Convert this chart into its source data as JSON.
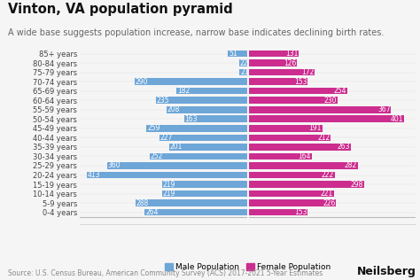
{
  "title": "Vinton, VA population pyramid",
  "subtitle": "A wide base suggests population increase, narrow base indicates declining birth rates.",
  "source": "Source: U.S. Census Bureau, American Community Survey (ACS) 2017-2021 5-Year Estimates",
  "age_groups": [
    "0-4 years",
    "5-9 years",
    "10-14 years",
    "15-19 years",
    "20-24 years",
    "25-29 years",
    "30-34 years",
    "35-39 years",
    "40-44 years",
    "45-49 years",
    "50-54 years",
    "55-59 years",
    "60-64 years",
    "65-69 years",
    "70-74 years",
    "75-79 years",
    "80-84 years",
    "85+ years"
  ],
  "male": [
    264,
    288,
    219,
    219,
    413,
    360,
    252,
    201,
    227,
    259,
    163,
    208,
    235,
    182,
    290,
    21,
    22,
    51
  ],
  "female": [
    153,
    226,
    221,
    298,
    222,
    282,
    164,
    263,
    212,
    191,
    401,
    367,
    230,
    254,
    153,
    172,
    126,
    131
  ],
  "male_color": "#6EA6D8",
  "female_color": "#CC2D8F",
  "bg_color": "#F5F5F5",
  "bar_height": 0.72,
  "label_fontsize": 5.5,
  "title_fontsize": 10.5,
  "subtitle_fontsize": 7.0,
  "source_fontsize": 5.5,
  "ytick_fontsize": 6.0,
  "xtick_fontsize": 6.0,
  "legend_fontsize": 6.5,
  "max_val": 430
}
